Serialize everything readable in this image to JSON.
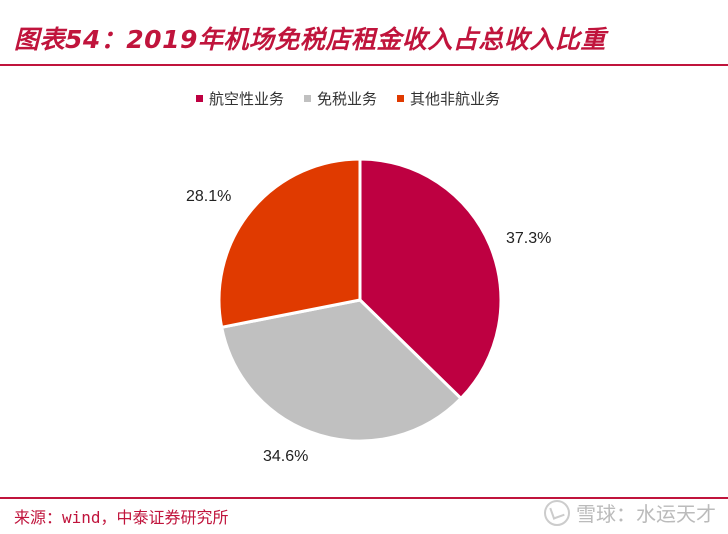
{
  "title": "图表54：2019年机场免税店租金收入占总收入比重",
  "source": "来源：wind，中泰证券研究所",
  "watermark": "雪球：水运天才",
  "colors": {
    "accent": "#c0143c"
  },
  "chart_data": {
    "type": "pie",
    "title": "",
    "slices": [
      {
        "name": "航空性业务",
        "value": 37.3,
        "label": "37.3%",
        "color": "#be0041"
      },
      {
        "name": "免税业务",
        "value": 34.6,
        "label": "34.6%",
        "color": "#c0c0c0"
      },
      {
        "name": "其他非航业务",
        "value": 28.1,
        "label": "28.1%",
        "color": "#e03a00"
      }
    ],
    "legend_position": "top",
    "start_angle_deg": 0,
    "direction": "clockwise"
  }
}
